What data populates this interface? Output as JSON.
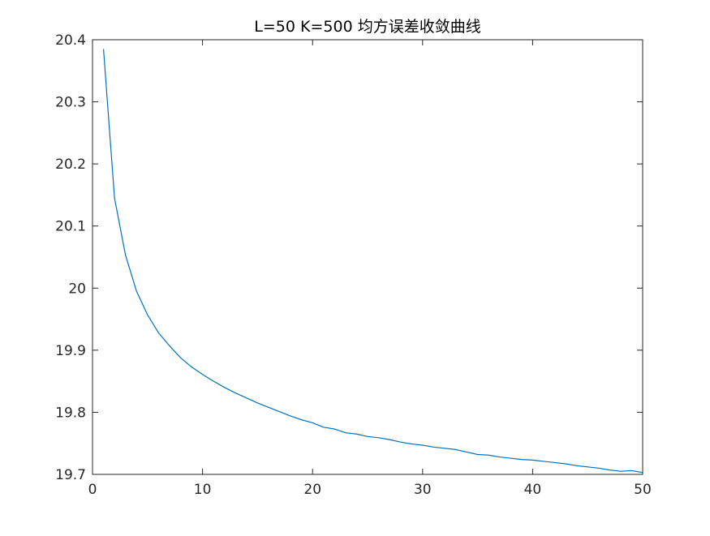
{
  "chart_data": {
    "type": "line",
    "title": "L=50 K=500 均方误差收敛曲线",
    "xlabel": "",
    "ylabel": "",
    "xlim": [
      0,
      50
    ],
    "ylim": [
      19.7,
      20.4
    ],
    "xticks": [
      "0",
      "10",
      "20",
      "30",
      "40",
      "50"
    ],
    "yticks": [
      "19.7",
      "19.8",
      "19.9",
      "20",
      "20.1",
      "20.2",
      "20.3",
      "20.4"
    ],
    "grid": false,
    "series": [
      {
        "color": "#0072BD",
        "x": [
          1,
          2,
          3,
          4,
          5,
          6,
          7,
          8,
          9,
          10,
          11,
          12,
          13,
          14,
          15,
          16,
          17,
          18,
          19,
          20,
          21,
          22,
          23,
          24,
          25,
          26,
          27,
          28,
          29,
          30,
          31,
          32,
          33,
          34,
          35,
          36,
          37,
          38,
          39,
          40,
          41,
          42,
          43,
          44,
          45,
          46,
          47,
          48,
          49,
          50
        ],
        "y": [
          20.385,
          20.145,
          20.053,
          19.995,
          19.957,
          19.928,
          19.907,
          19.888,
          19.873,
          19.861,
          19.85,
          19.84,
          19.831,
          19.823,
          19.815,
          19.808,
          19.801,
          19.794,
          19.788,
          19.783,
          19.776,
          19.773,
          19.767,
          19.765,
          19.761,
          19.759,
          19.756,
          19.752,
          19.749,
          19.747,
          19.744,
          19.742,
          19.74,
          19.736,
          19.732,
          19.731,
          19.728,
          19.726,
          19.724,
          19.723,
          19.721,
          19.719,
          19.717,
          19.714,
          19.712,
          19.71,
          19.707,
          19.705,
          19.706,
          19.703
        ]
      }
    ]
  }
}
